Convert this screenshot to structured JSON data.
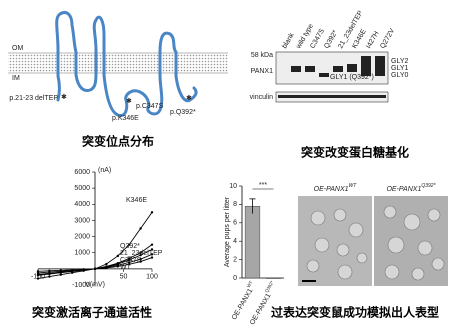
{
  "topology": {
    "om": "OM",
    "im": "IM",
    "mutations": [
      "p.21-23 delTEP",
      "p.C347S",
      "p.K346E",
      "p.Q392*"
    ],
    "caption": "突变位点分布"
  },
  "blot": {
    "lanes": [
      "blank",
      "wild type",
      "C347S",
      "Q392*",
      "21_23delTEP",
      "K346E",
      "I427H",
      "Q272V"
    ],
    "marker": "58 kDa",
    "protein": "PANX1",
    "loading": "vinculin",
    "bands": [
      "GLY2",
      "GLY1",
      "GLY0"
    ],
    "band_note": "GLY1 (Q392*)",
    "caption": "突变改变蛋白糖基化"
  },
  "chart_data": [
    {
      "type": "line",
      "caption": "突变激活离子通道活性",
      "y_label": "(nA)",
      "x_label": "V(mV)",
      "x": [
        -100,
        -80,
        -60,
        -40,
        -20,
        0,
        20,
        40,
        60,
        80,
        100
      ],
      "xlim": [
        -100,
        100
      ],
      "xticks": [
        -100,
        50,
        100
      ],
      "ylim": [
        -1000,
        6000
      ],
      "yticks": [
        -1000,
        1000,
        2000,
        3000,
        4000,
        5000,
        6000
      ],
      "series": [
        {
          "name": "K346E",
          "color": "#000000",
          "values": [
            -600,
            -480,
            -360,
            -240,
            -120,
            0,
            300,
            800,
            1500,
            2500,
            3500
          ]
        },
        {
          "name": "Q392*",
          "color": "#000000",
          "values": [
            -400,
            -320,
            -240,
            -160,
            -80,
            0,
            150,
            350,
            650,
            1000,
            1500
          ]
        },
        {
          "name": "21_23delTEP",
          "color": "#000000",
          "values": [
            -350,
            -280,
            -210,
            -140,
            -70,
            0,
            120,
            300,
            550,
            850,
            1200
          ]
        },
        {
          "name": "C347S",
          "color": "#000000",
          "values": [
            -250,
            -200,
            -150,
            -100,
            -50,
            0,
            100,
            220,
            400,
            600,
            900
          ]
        },
        {
          "name": "WT",
          "color": "#000000",
          "values": [
            -150,
            -120,
            -90,
            -60,
            -30,
            0,
            60,
            150,
            280,
            450,
            700
          ]
        }
      ]
    },
    {
      "type": "bar",
      "y_label": "Average pups per litter",
      "categories": [
        "OE-PANX1",
        "OE-PANX1"
      ],
      "category_superscripts": [
        "WT",
        "Q392*"
      ],
      "values": [
        7.8,
        0
      ],
      "errors": [
        0.8,
        0
      ],
      "color": "#a6a6a6",
      "ylim": [
        0,
        10
      ],
      "yticks": [
        0,
        2,
        4,
        6,
        8,
        10
      ],
      "significance": "***"
    }
  ],
  "mouse": {
    "images": [
      {
        "name": "OE-PANX1",
        "superscript": "WT"
      },
      {
        "name": "OE-PANX1",
        "superscript": "Q392*"
      }
    ],
    "caption": "过表达突变鼠成功模拟出人表型"
  }
}
